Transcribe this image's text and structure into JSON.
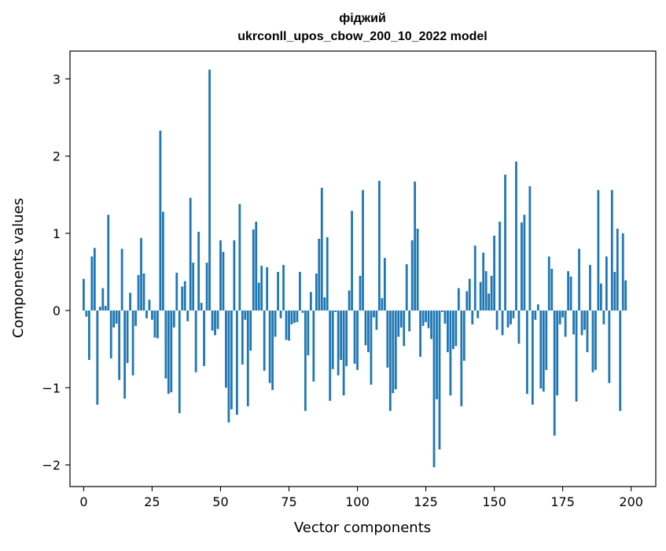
{
  "chart_data": {
    "type": "bar",
    "title": "фіджий",
    "subtitle": "ukrconll_upos_cbow_200_10_2022 model",
    "xlabel": "Vector components",
    "ylabel": "Components values",
    "xlim": [
      -5,
      209
    ],
    "ylim": [
      -2.28,
      3.36
    ],
    "xticks": [
      0,
      25,
      50,
      75,
      100,
      125,
      150,
      175,
      200
    ],
    "xtick_labels": [
      "0",
      "25",
      "50",
      "75",
      "100",
      "125",
      "150",
      "175",
      "200"
    ],
    "yticks": [
      -2,
      -1,
      0,
      1,
      2,
      3
    ],
    "ytick_labels": [
      "−2",
      "−1",
      "0",
      "1",
      "2",
      "3"
    ],
    "grid": false,
    "bar_color": "#1f77b4",
    "values": [
      0.41,
      -0.08,
      -0.64,
      0.7,
      0.81,
      -1.22,
      0.05,
      0.29,
      0.06,
      1.24,
      -0.62,
      -0.22,
      -0.17,
      -0.9,
      0.8,
      -1.14,
      -0.68,
      0.23,
      -0.84,
      -0.2,
      0.46,
      0.94,
      0.48,
      -0.1,
      0.14,
      -0.12,
      -0.35,
      -0.36,
      2.33,
      1.28,
      -0.88,
      -1.08,
      -1.06,
      -0.22,
      0.49,
      -1.33,
      0.31,
      0.38,
      -0.14,
      1.46,
      0.62,
      -0.8,
      1.02,
      0.1,
      -0.72,
      0.62,
      3.12,
      -0.26,
      -0.32,
      -0.24,
      0.91,
      0.76,
      -1.0,
      -1.45,
      -1.28,
      0.91,
      -1.35,
      1.38,
      -0.7,
      -0.12,
      -1.24,
      -0.52,
      1.05,
      1.15,
      0.36,
      0.58,
      -0.78,
      0.56,
      -0.94,
      -1.03,
      -0.34,
      0.5,
      -0.1,
      0.59,
      -0.38,
      -0.39,
      -0.18,
      -0.16,
      -0.15,
      0.5,
      -0.03,
      -1.3,
      -0.58,
      0.24,
      -0.92,
      0.48,
      0.93,
      1.59,
      0.17,
      0.95,
      -1.17,
      -0.76,
      -0.02,
      -0.84,
      -0.64,
      -1.1,
      -0.72,
      0.26,
      1.29,
      -0.69,
      -0.77,
      0.45,
      1.56,
      -0.45,
      -0.54,
      -0.96,
      -0.09,
      -0.25,
      1.68,
      0.16,
      0.68,
      -0.74,
      -1.3,
      -1.07,
      -1.02,
      -0.34,
      -0.22,
      -0.46,
      0.6,
      -0.27,
      0.91,
      1.67,
      1.06,
      -0.6,
      -0.2,
      -0.15,
      -0.23,
      -0.37,
      -2.03,
      -1.15,
      -1.8,
      -0.02,
      -0.17,
      -0.54,
      -1.1,
      -0.5,
      -0.46,
      0.29,
      -1.24,
      -0.65,
      0.25,
      0.41,
      -0.18,
      0.84,
      -0.1,
      0.37,
      0.75,
      0.51,
      0.22,
      0.45,
      0.97,
      -0.25,
      1.15,
      -0.32,
      1.76,
      -0.22,
      -0.18,
      -0.1,
      1.93,
      -0.43,
      1.14,
      1.24,
      -1.08,
      1.61,
      -1.22,
      -0.12,
      0.08,
      -1.01,
      -1.05,
      -0.77,
      0.7,
      0.54,
      -1.62,
      -1.1,
      -0.18,
      -0.09,
      -0.34,
      0.51,
      0.44,
      -0.31,
      -1.18,
      0.8,
      -0.32,
      -0.25,
      -0.54,
      0.59,
      -0.8,
      -0.77,
      1.56,
      0.35,
      -0.18,
      0.7,
      -0.94,
      1.56,
      0.5,
      1.06,
      -1.3,
      1.0,
      0.39
    ]
  }
}
